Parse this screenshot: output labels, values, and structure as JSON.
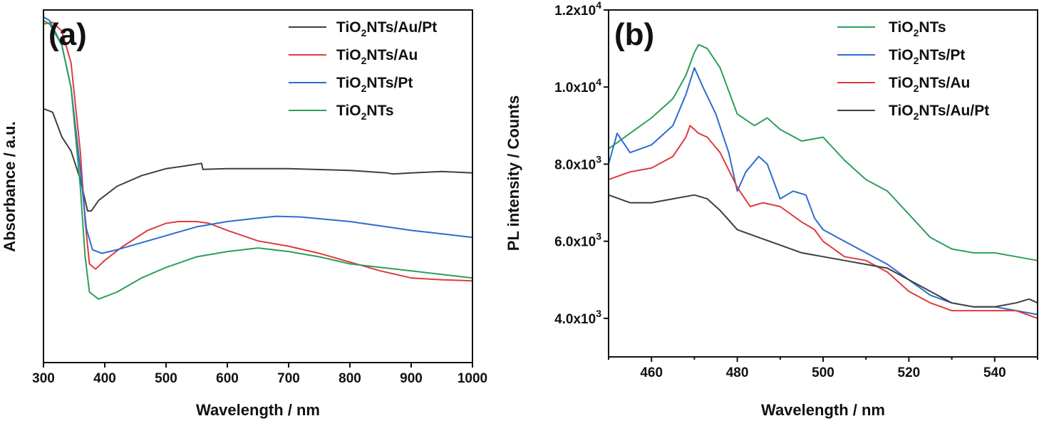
{
  "chart_data": [
    {
      "type": "line",
      "panel_label": "(a)",
      "xlabel": "Wavelength / nm",
      "ylabel": "Absorbance / a.u.",
      "xlim": [
        300,
        1000
      ],
      "xticks": [
        300,
        400,
        500,
        600,
        700,
        800,
        900,
        1000
      ],
      "yticks": [],
      "ylim": [
        0,
        1
      ],
      "legend_position": "top-right",
      "series": [
        {
          "name": "TiO2NTs/Au/Pt",
          "color": "#3f3f3f",
          "x": [
            300,
            315,
            330,
            345,
            360,
            372,
            378,
            390,
            420,
            460,
            500,
            540,
            558,
            560,
            600,
            700,
            800,
            860,
            870,
            900,
            950,
            1000
          ],
          "y": [
            0.72,
            0.71,
            0.64,
            0.6,
            0.52,
            0.43,
            0.43,
            0.46,
            0.5,
            0.53,
            0.55,
            0.56,
            0.565,
            0.548,
            0.55,
            0.55,
            0.545,
            0.538,
            0.535,
            0.538,
            0.542,
            0.538
          ]
        },
        {
          "name": "TiO2NTs/Au",
          "color": "#e03b3b",
          "x": [
            300,
            315,
            330,
            345,
            360,
            368,
            375,
            385,
            400,
            430,
            470,
            500,
            520,
            550,
            570,
            600,
            650,
            700,
            750,
            800,
            850,
            900,
            950,
            1000
          ],
          "y": [
            0.96,
            0.965,
            0.94,
            0.85,
            0.6,
            0.4,
            0.28,
            0.265,
            0.29,
            0.33,
            0.375,
            0.395,
            0.4,
            0.4,
            0.395,
            0.375,
            0.345,
            0.33,
            0.31,
            0.285,
            0.26,
            0.24,
            0.235,
            0.232
          ]
        },
        {
          "name": "TiO2NTs/Pt",
          "color": "#2d6ccf",
          "x": [
            300,
            310,
            330,
            345,
            360,
            370,
            380,
            395,
            420,
            460,
            500,
            550,
            600,
            650,
            680,
            720,
            800,
            860,
            900,
            950,
            1000
          ],
          "y": [
            0.98,
            0.97,
            0.9,
            0.78,
            0.55,
            0.38,
            0.32,
            0.31,
            0.32,
            0.34,
            0.36,
            0.385,
            0.4,
            0.41,
            0.415,
            0.413,
            0.4,
            0.385,
            0.375,
            0.365,
            0.355
          ]
        },
        {
          "name": "TiO2NTs",
          "color": "#2e9e5b",
          "x": [
            300,
            310,
            330,
            345,
            360,
            368,
            375,
            390,
            420,
            460,
            500,
            550,
            600,
            650,
            700,
            750,
            800,
            850,
            900,
            950,
            1000
          ],
          "y": [
            0.97,
            0.96,
            0.9,
            0.78,
            0.5,
            0.3,
            0.2,
            0.18,
            0.2,
            0.24,
            0.27,
            0.3,
            0.315,
            0.325,
            0.315,
            0.3,
            0.28,
            0.27,
            0.26,
            0.25,
            0.24
          ]
        }
      ]
    },
    {
      "type": "line",
      "panel_label": "(b)",
      "xlabel": "Wavelength / nm",
      "ylabel": "PL intensity / Counts",
      "xlim": [
        450,
        550
      ],
      "ylim": [
        3000,
        12000
      ],
      "xticks": [
        460,
        480,
        500,
        520,
        540
      ],
      "yticks": [
        4000,
        6000,
        8000,
        10000,
        12000
      ],
      "ytick_labels": [
        {
          "mantissa": "4.0x10",
          "exp": "3"
        },
        {
          "mantissa": "6.0x10",
          "exp": "3"
        },
        {
          "mantissa": "8.0x10",
          "exp": "3"
        },
        {
          "mantissa": "1.0x10",
          "exp": "4"
        },
        {
          "mantissa": "1.2x10",
          "exp": "4"
        }
      ],
      "legend_position": "top-right",
      "series": [
        {
          "name": "TiO2NTs",
          "color": "#2e9e5b",
          "x": [
            450,
            455,
            460,
            465,
            468,
            470,
            471,
            473,
            476,
            480,
            484,
            487,
            490,
            495,
            500,
            505,
            510,
            515,
            520,
            525,
            530,
            535,
            540,
            545,
            550
          ],
          "y": [
            8400,
            8800,
            9200,
            9700,
            10300,
            10900,
            11100,
            11000,
            10500,
            9300,
            9000,
            9200,
            8900,
            8600,
            8700,
            8100,
            7600,
            7300,
            6700,
            6100,
            5800,
            5700,
            5700,
            5600,
            5500
          ]
        },
        {
          "name": "TiO2NTs/Pt",
          "color": "#2d6ccf",
          "x": [
            450,
            452,
            455,
            460,
            465,
            468,
            470,
            472,
            475,
            478,
            480,
            482,
            485,
            487,
            490,
            493,
            496,
            498,
            500,
            505,
            510,
            515,
            520,
            525,
            530,
            535,
            540,
            545,
            550
          ],
          "y": [
            8000,
            8800,
            8300,
            8500,
            9000,
            9800,
            10500,
            10000,
            9300,
            8300,
            7300,
            7800,
            8200,
            8000,
            7100,
            7300,
            7200,
            6600,
            6300,
            6000,
            5700,
            5400,
            5000,
            4600,
            4400,
            4300,
            4300,
            4200,
            4100
          ]
        },
        {
          "name": "TiO2NTs/Au",
          "color": "#e03b3b",
          "x": [
            450,
            455,
            460,
            465,
            468,
            469,
            471,
            473,
            476,
            480,
            483,
            486,
            490,
            495,
            498,
            500,
            505,
            510,
            515,
            520,
            525,
            530,
            535,
            540,
            545,
            550
          ],
          "y": [
            7600,
            7800,
            7900,
            8200,
            8700,
            9000,
            8800,
            8700,
            8300,
            7400,
            6900,
            7000,
            6900,
            6500,
            6300,
            6000,
            5600,
            5500,
            5200,
            4700,
            4400,
            4200,
            4200,
            4200,
            4200,
            4000
          ]
        },
        {
          "name": "TiO2NTs/Au/Pt",
          "color": "#3f3f3f",
          "x": [
            450,
            455,
            460,
            465,
            470,
            473,
            476,
            480,
            485,
            490,
            495,
            500,
            505,
            510,
            515,
            520,
            525,
            530,
            535,
            540,
            545,
            548,
            550
          ],
          "y": [
            7200,
            7000,
            7000,
            7100,
            7200,
            7100,
            6800,
            6300,
            6100,
            5900,
            5700,
            5600,
            5500,
            5400,
            5300,
            5000,
            4700,
            4400,
            4300,
            4300,
            4400,
            4500,
            4400
          ]
        }
      ]
    }
  ]
}
